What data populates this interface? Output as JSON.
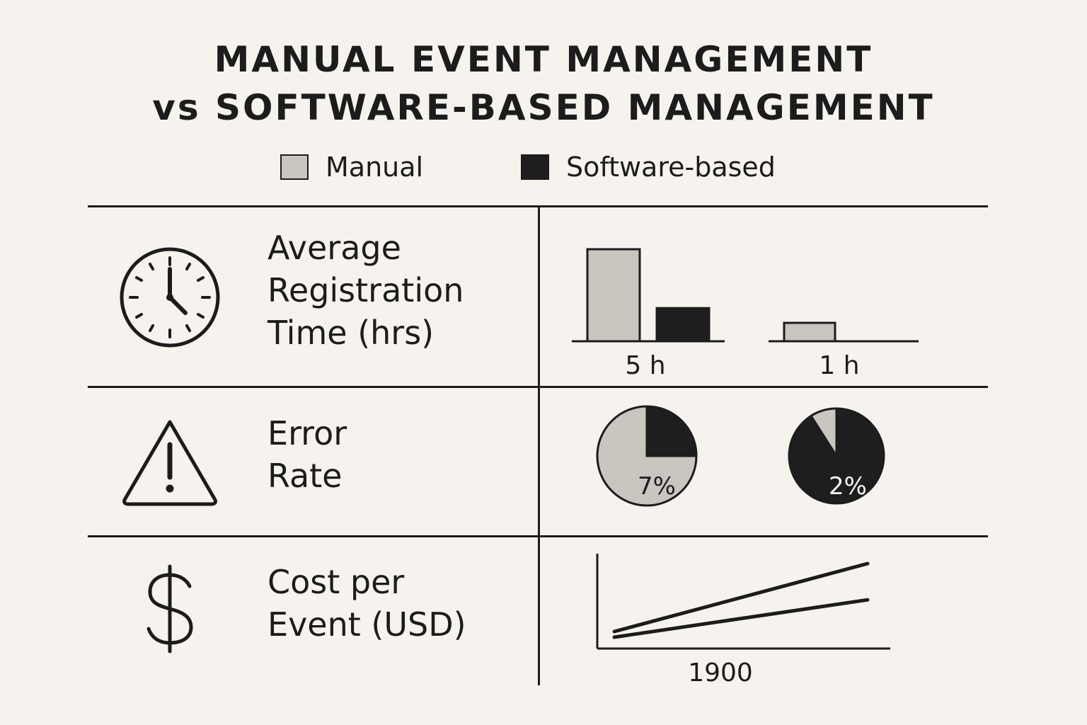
{
  "title": {
    "line1": "MANUAL EVENT MANAGEMENT",
    "line2": "vs SOFTWARE-BASED MANAGEMENT"
  },
  "legend": {
    "manual": {
      "label": "Manual",
      "color": "#c9c5bf"
    },
    "software": {
      "label": "Software-based",
      "color": "#1e1e1e"
    }
  },
  "rows": {
    "registration": {
      "icon": "clock-icon",
      "label_lines": [
        "Average",
        "Registration",
        "Time (hrs)"
      ]
    },
    "error": {
      "icon": "warning-icon",
      "label_lines": [
        "Error",
        "Rate"
      ]
    },
    "cost": {
      "icon": "dollar-icon",
      "label_lines": [
        "Cost per",
        "Event (USD)"
      ]
    }
  },
  "chart_data": [
    {
      "type": "bar",
      "metric": "registration",
      "groups": [
        {
          "label": "5 h",
          "bars": [
            {
              "series": "Manual",
              "value": 5
            },
            {
              "series": "Software-based",
              "value": 1.8
            }
          ]
        },
        {
          "label": "1 h",
          "bars": [
            {
              "series": "Manual",
              "value": 1
            }
          ]
        }
      ],
      "ylim": [
        0,
        5
      ]
    },
    {
      "type": "pie",
      "metric": "error",
      "pies": [
        {
          "label": "7%",
          "base_color": "#c9c5bf",
          "slice_color": "#1e1e1e",
          "slice_fraction": 0.25
        },
        {
          "label": "2%",
          "base_color": "#1e1e1e",
          "slice_color": "#c9c5bf",
          "slice_fraction": 0.09
        }
      ]
    },
    {
      "type": "line",
      "metric": "cost",
      "xlabel": "1900",
      "series": [
        {
          "values": [
            0,
            1
          ]
        },
        {
          "values": [
            0,
            0.55
          ]
        }
      ],
      "ylim": [
        0,
        1
      ]
    }
  ]
}
